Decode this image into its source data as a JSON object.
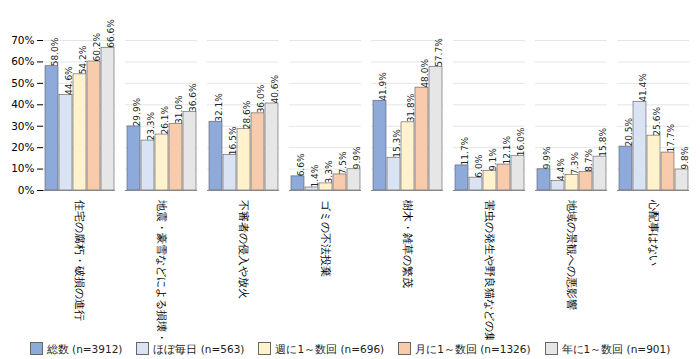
{
  "chart_data": {
    "type": "bar",
    "categories": [
      "住宅の腐朽・破損の進行",
      "地震・豪雪などによる損壊・倒壊",
      "不審者の侵入や放火",
      "ゴミの不法投棄",
      "樹木・雑草の繁茂",
      "害虫の発生や野良猫などの集中",
      "地域の景観への悪影響",
      "心配事はない"
    ],
    "series": [
      {
        "name": "総数 (n=3912)",
        "color": "#8eaadb",
        "values": [
          58.0,
          29.9,
          32.1,
          6.6,
          41.9,
          11.7,
          9.9,
          20.5
        ],
        "value_labels": [
          "58.0%",
          "29.9%",
          "32.1%",
          "6.6%",
          "41.9%",
          "11.7%",
          "9.9%",
          "20.5%"
        ]
      },
      {
        "name": "ほぼ毎日 (n=563)",
        "color": "#dae3f3",
        "values": [
          44.6,
          23.3,
          16.5,
          1.4,
          15.3,
          6.0,
          4.4,
          41.4
        ],
        "value_labels": [
          "44.6%",
          "23.3%",
          "16.5%",
          "1.4%",
          "15.3%",
          "6.0%",
          "4.4%",
          "41.4%"
        ]
      },
      {
        "name": "週に1～数回 (n=696)",
        "color": "#fff2cc",
        "values": [
          54.2,
          26.1,
          28.6,
          3.3,
          31.8,
          9.1,
          7.3,
          25.6
        ],
        "value_labels": [
          "54.2%",
          "26.1%",
          "28.6%",
          "3.3%",
          "31.8%",
          "9.1%",
          "7.3%",
          "25.6%"
        ]
      },
      {
        "name": "月に1～数回 (n=1326)",
        "color": "#f8cbad",
        "values": [
          60.2,
          31.0,
          36.0,
          7.5,
          48.0,
          12.1,
          8.7,
          17.7
        ],
        "value_labels": [
          "60.2%",
          "31.0%",
          "36.0%",
          "7.5%",
          "48.0%",
          "12.1%",
          "8.7%",
          "17.7%"
        ]
      },
      {
        "name": "年に1～数回 (n=901)",
        "color": "#e7e6e6",
        "values": [
          66.6,
          36.6,
          40.6,
          9.9,
          57.7,
          16.0,
          15.8,
          9.8
        ],
        "value_labels": [
          "66.6%",
          "36.6%",
          "40.6%",
          "9.9%",
          "57.7%",
          "16.0%",
          "15.8%",
          "9.8%"
        ]
      }
    ],
    "ylim": [
      0,
      70
    ],
    "yticks": [
      {
        "value": 0,
        "label": "0%"
      },
      {
        "value": 10,
        "label": "10%"
      },
      {
        "value": 20,
        "label": "20%"
      },
      {
        "value": 30,
        "label": "30%"
      },
      {
        "value": 40,
        "label": "40%"
      },
      {
        "value": 50,
        "label": "50%"
      },
      {
        "value": 60,
        "label": "60%"
      },
      {
        "value": 70,
        "label": "70%"
      }
    ],
    "grid": true,
    "data_labels": true,
    "legend": "bottom"
  }
}
